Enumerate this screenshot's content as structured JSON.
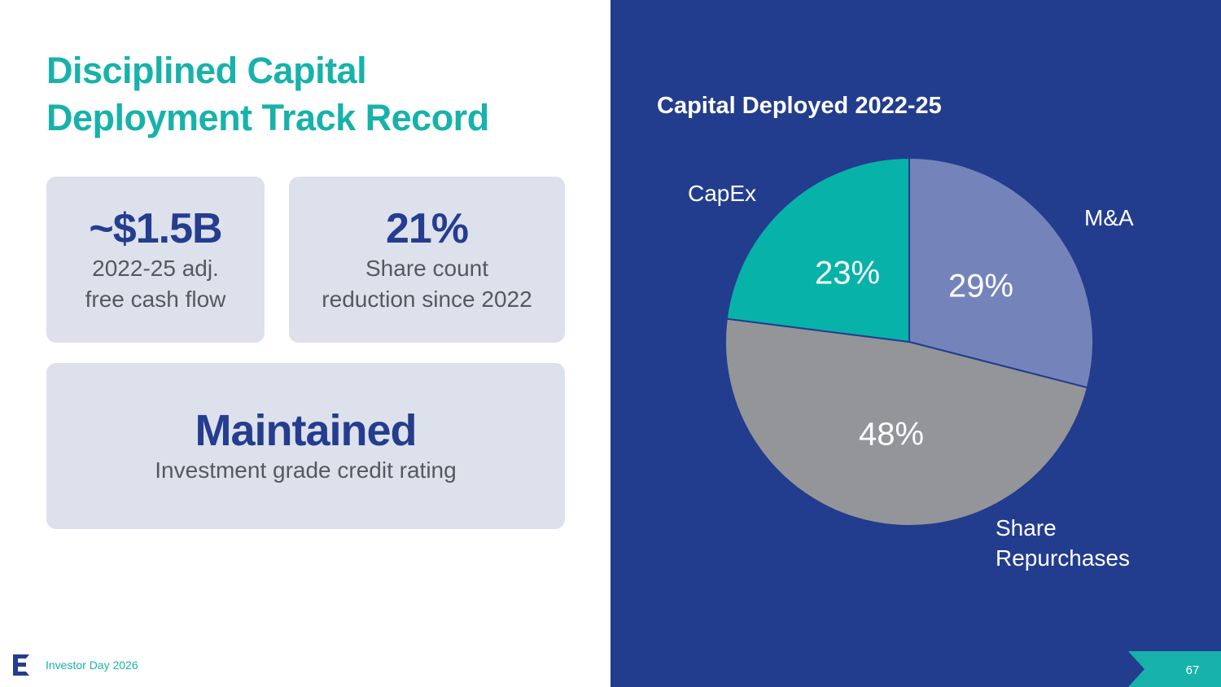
{
  "title": {
    "line1": "Disciplined Capital",
    "line2": "Deployment Track Record"
  },
  "cards": {
    "fcf": {
      "value": "~$1.5B",
      "desc_line1": "2022-25 adj.",
      "desc_line2": "free cash flow"
    },
    "share": {
      "value": "21%",
      "desc_line1": "Share count",
      "desc_line2": "reduction since 2022"
    },
    "rating": {
      "value": "Maintained",
      "desc": "Investment grade credit rating"
    }
  },
  "footer": {
    "text": "Investor Day 2026",
    "page_number": "67",
    "logo_icon": "company-e-logo-icon"
  },
  "colors": {
    "navy": "#233d8e",
    "teal": "#17b2aa",
    "capex": "#07b3a9",
    "ma": "#7484bb",
    "repurchases": "#939598"
  },
  "chart_data": {
    "type": "pie",
    "title": "Capital Deployed 2022-25",
    "slices": [
      {
        "label": "M&A",
        "value": 29,
        "display": "29%",
        "color": "#7484bb"
      },
      {
        "label": "Share Repurchases",
        "value": 48,
        "display": "48%",
        "color": "#939598"
      },
      {
        "label": "CapEx",
        "value": 23,
        "display": "23%",
        "color": "#07b3a9"
      }
    ],
    "start": "12 o'clock",
    "direction": "clockwise",
    "legend": "none (direct labels outside slices)"
  }
}
